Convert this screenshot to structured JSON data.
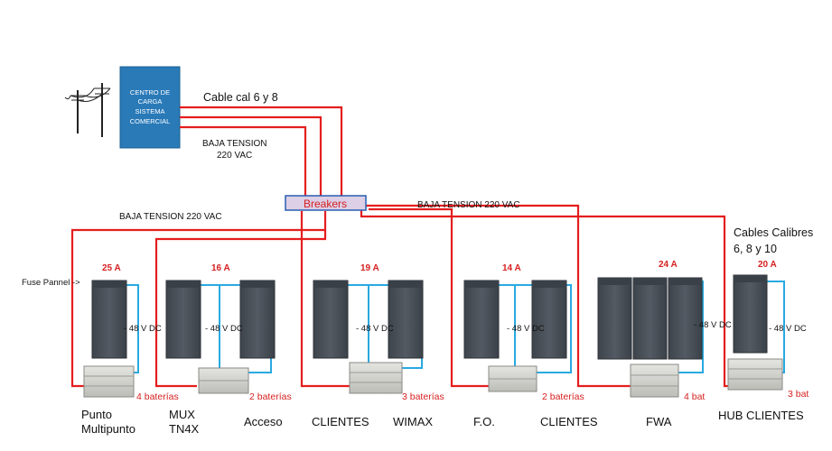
{
  "center": {
    "label_lines": [
      "CENTRO DE",
      "CARGA",
      "SISTEMA",
      "COMERCIAL"
    ]
  },
  "cable_label": "Cable cal  6 y 8",
  "low_voltage_left": [
    "BAJA TENSION",
    "220 VAC"
  ],
  "breakers_label": "Breakers",
  "low_voltage_mid": "BAJA TENSION  220 VAC",
  "low_voltage_right": "BAJA TENSION  220 VAC",
  "cables_calibres": [
    "Cables Calibres",
    "6, 8 y 10"
  ],
  "fuse_panel": "Fuse Pannel ->",
  "voltage_label": "- 48 V DC",
  "groups": [
    {
      "amps": "25 A",
      "batteries": "4 baterías"
    },
    {
      "amps": "16 A",
      "batteries": "2 baterías"
    },
    {
      "amps": "19 A",
      "batteries": "3 baterías"
    },
    {
      "amps": "14 A",
      "batteries": "2 baterías"
    },
    {
      "amps": "24 A",
      "batteries": "4 bat"
    },
    {
      "amps": "20 A",
      "batteries": "3 bat"
    }
  ],
  "bottom_labels": [
    [
      "Punto",
      "Multipunto"
    ],
    [
      "MUX",
      "TN4X"
    ],
    [
      "Acceso"
    ],
    [
      "CLIENTES"
    ],
    [
      "WIMAX"
    ],
    [
      "F.O."
    ],
    [
      "CLIENTES"
    ],
    [
      "FWA"
    ],
    [
      "HUB CLIENTES"
    ]
  ],
  "colors": {
    "power_line": "#e41e1e",
    "dc_line": "#29a9e1",
    "cabinet": "#474d55",
    "center_box": "#2a7ab8",
    "breaker_fill": "#dccfe6"
  }
}
